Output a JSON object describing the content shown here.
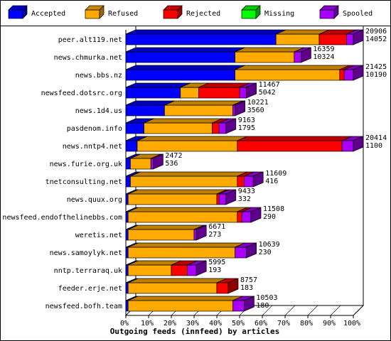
{
  "chart_data": {
    "type": "bar",
    "stacked": true,
    "percent": true,
    "three_d": true,
    "title": "",
    "xlabel": "Outgoing feeds (innfeed) by articles",
    "ylabel": "",
    "xlim": [
      0,
      100
    ],
    "x_ticks": [
      "0%",
      "10%",
      "20%",
      "30%",
      "40%",
      "50%",
      "60%",
      "70%",
      "80%",
      "90%",
      "100%"
    ],
    "legend_position": "top",
    "series": [
      {
        "name": "Accepted",
        "color": "#0000ff"
      },
      {
        "name": "Refused",
        "color": "#ffaa00"
      },
      {
        "name": "Rejected",
        "color": "#ff0000"
      },
      {
        "name": "Missing",
        "color": "#00ff00"
      },
      {
        "name": "Spooled",
        "color": "#aa00ff"
      }
    ],
    "rows": [
      {
        "label": "peer.alt119.net",
        "total": "20906",
        "accepted": "14052",
        "pct": [
          66,
          19,
          12,
          0,
          3
        ]
      },
      {
        "label": "news.chmurka.net",
        "total": "16359",
        "accepted": "10324",
        "pct": [
          48,
          26,
          0,
          0,
          3
        ]
      },
      {
        "label": "news.bbs.nz",
        "total": "21425",
        "accepted": "10190",
        "pct": [
          48,
          46,
          2,
          0,
          4
        ]
      },
      {
        "label": "newsfeed.dotsrc.org",
        "total": "11467",
        "accepted": "5042",
        "pct": [
          24,
          8,
          18,
          0,
          3
        ]
      },
      {
        "label": "news.1d4.us",
        "total": "10221",
        "accepted": "3560",
        "pct": [
          17,
          30,
          0,
          0,
          1
        ]
      },
      {
        "label": "pasdenom.info",
        "total": "9163",
        "accepted": "1795",
        "pct": [
          8,
          30,
          3,
          0,
          3
        ]
      },
      {
        "label": "news.nntp4.net",
        "total": "20414",
        "accepted": "1100",
        "pct": [
          5,
          44,
          46,
          0,
          5
        ]
      },
      {
        "label": "news.furie.org.uk",
        "total": "2472",
        "accepted": "536",
        "pct": [
          2,
          9,
          0,
          0,
          1
        ]
      },
      {
        "label": "tnetconsulting.net",
        "total": "11609",
        "accepted": "416",
        "pct": [
          2,
          47,
          3,
          0,
          4
        ]
      },
      {
        "label": "news.quux.org",
        "total": "9433",
        "accepted": "332",
        "pct": [
          1,
          39,
          1,
          0,
          3
        ]
      },
      {
        "label": "newsfeed.endofthelinebbs.com",
        "total": "11508",
        "accepted": "290",
        "pct": [
          1,
          48,
          2,
          0,
          4
        ]
      },
      {
        "label": "weretis.net",
        "total": "6671",
        "accepted": "273",
        "pct": [
          1,
          29,
          0,
          0,
          1
        ]
      },
      {
        "label": "news.samoylyk.net",
        "total": "10639",
        "accepted": "230",
        "pct": [
          1,
          47,
          0,
          0,
          5
        ]
      },
      {
        "label": "nntp.terraraq.uk",
        "total": "5995",
        "accepted": "193",
        "pct": [
          1,
          19,
          7,
          0,
          4
        ]
      },
      {
        "label": "feeder.erje.net",
        "total": "8757",
        "accepted": "183",
        "pct": [
          1,
          39,
          5,
          0,
          0
        ]
      },
      {
        "label": "newsfeed.bofh.team",
        "total": "10503",
        "accepted": "180",
        "pct": [
          1,
          46,
          0,
          0,
          5
        ]
      }
    ]
  }
}
